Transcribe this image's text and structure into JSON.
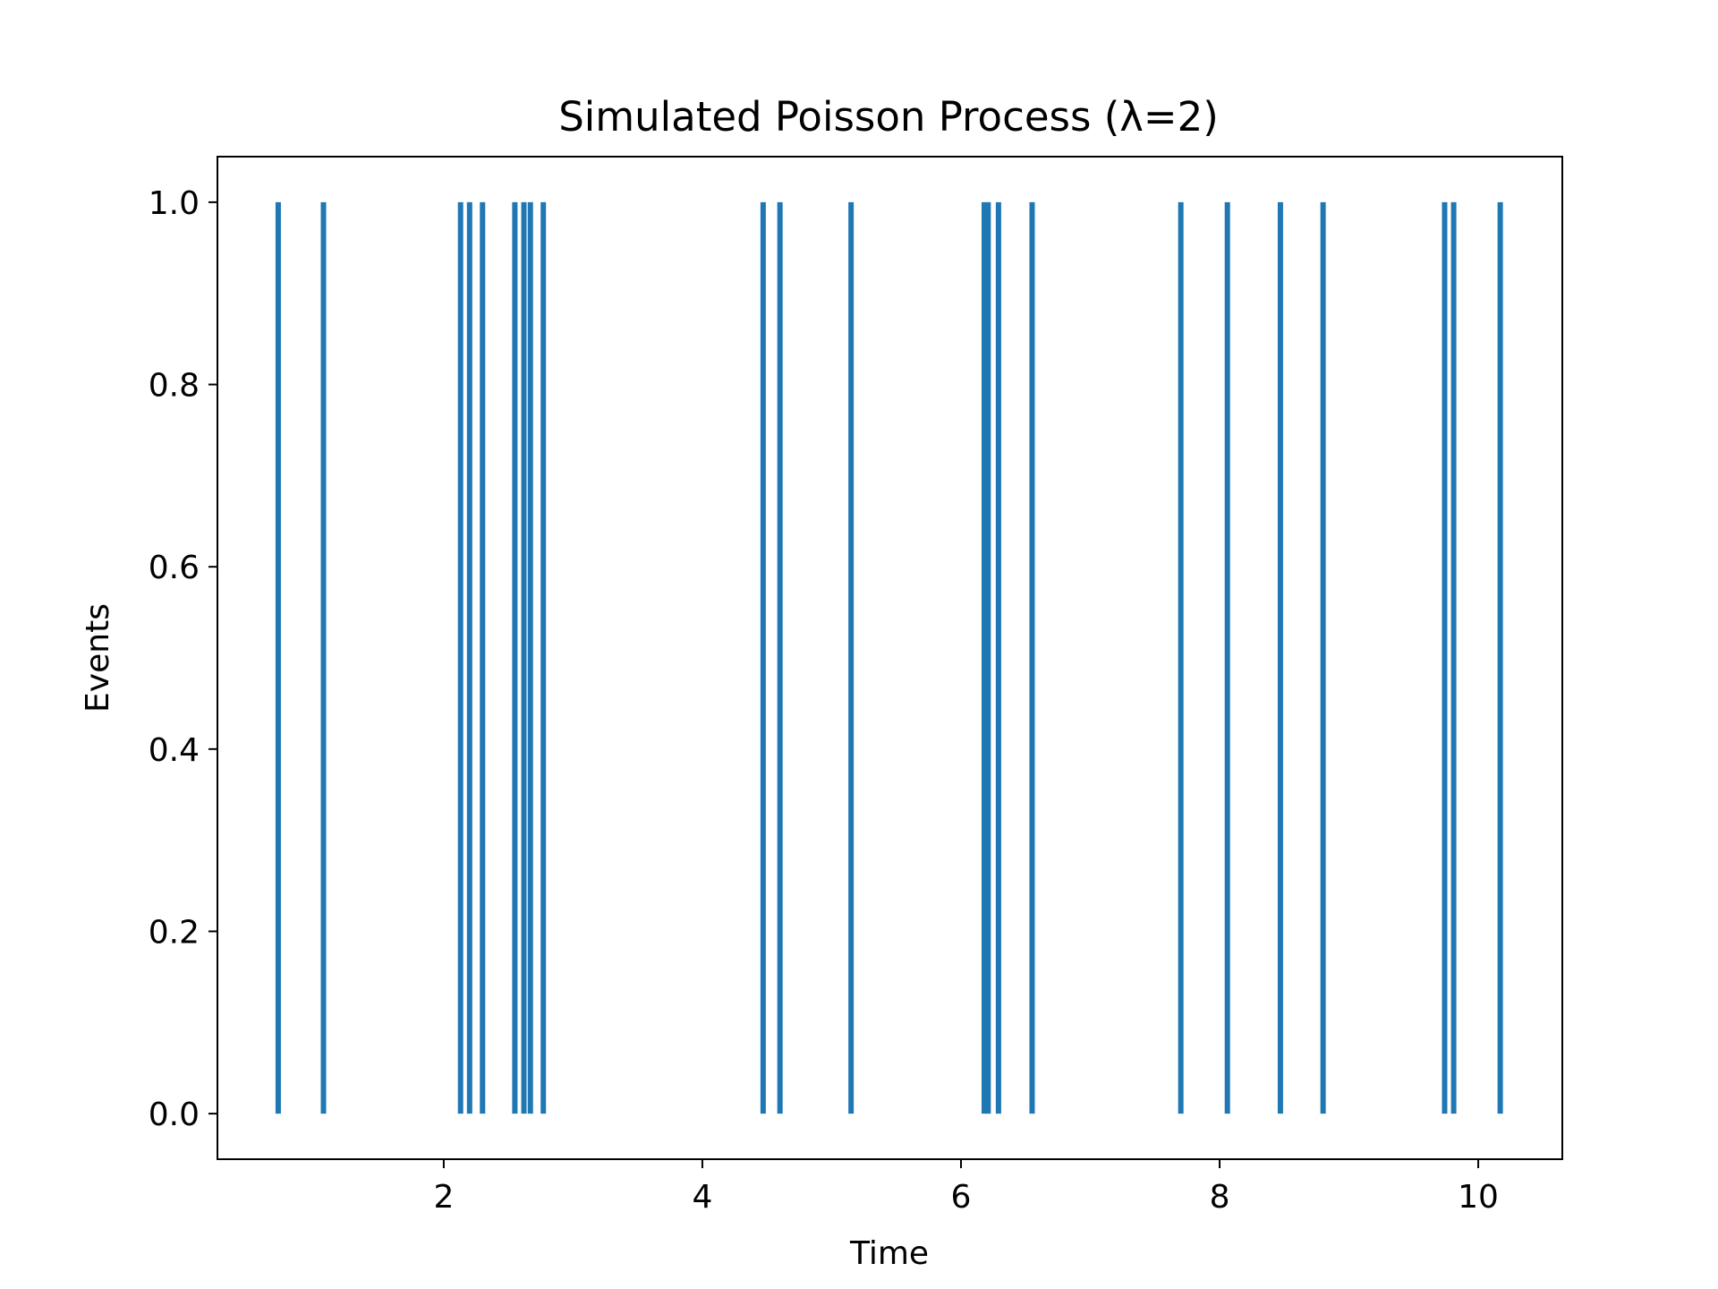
{
  "chart_data": {
    "type": "event-plot",
    "title": "Simulated Poisson Process (λ=2)",
    "xlabel": "Time",
    "ylabel": "Events",
    "xlim": [
      0.25,
      10.65
    ],
    "ylim": [
      -0.05,
      1.05
    ],
    "x_ticks": [
      2,
      4,
      6,
      8,
      10
    ],
    "y_ticks": [
      0.0,
      0.2,
      0.4,
      0.6,
      0.8,
      1.0
    ],
    "x_tick_labels": [
      "2",
      "4",
      "6",
      "8",
      "10"
    ],
    "y_tick_labels": [
      "0.0",
      "0.2",
      "0.4",
      "0.6",
      "0.8",
      "1.0"
    ],
    "event_times": [
      0.72,
      1.07,
      2.13,
      2.2,
      2.3,
      2.55,
      2.62,
      2.67,
      2.77,
      4.47,
      4.6,
      5.15,
      6.18,
      6.21,
      6.29,
      6.55,
      7.7,
      8.06,
      8.47,
      8.8,
      9.74,
      9.81,
      10.17
    ],
    "event_y_range": [
      0,
      1
    ],
    "color": "#1f77b4",
    "grid": false,
    "legend": "none"
  }
}
